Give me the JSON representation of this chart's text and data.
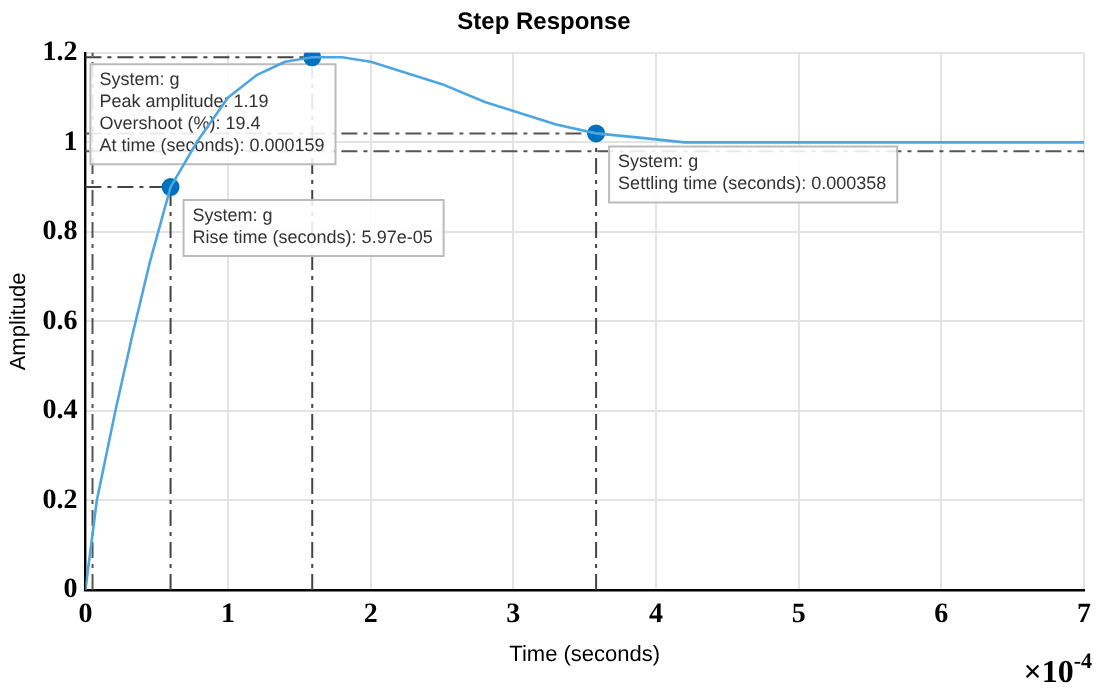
{
  "chart_data": {
    "type": "line",
    "title": "Step Response",
    "xlabel": "Time (seconds)",
    "ylabel": "Amplitude",
    "xlim": [
      0,
      7
    ],
    "xticks": [
      0,
      1,
      2,
      3,
      4,
      5,
      6,
      7
    ],
    "ylim": [
      0,
      1.2
    ],
    "yticks": [
      0,
      0.2,
      0.4,
      0.6,
      0.8,
      1,
      1.2
    ],
    "grid": true,
    "legend": false,
    "series": [
      {
        "color": "#4da6e0",
        "x": [
          0,
          0.08,
          0.21,
          0.33,
          0.45,
          0.597,
          0.78,
          1.0,
          1.2,
          1.4,
          1.59,
          1.8,
          2.0,
          2.2,
          2.5,
          2.8,
          3.0,
          3.3,
          3.58,
          3.9,
          4.2,
          5,
          6,
          7
        ],
        "values": [
          0,
          0.2,
          0.4,
          0.57,
          0.73,
          0.9,
          1.0,
          1.1,
          1.15,
          1.18,
          1.19,
          1.19,
          1.18,
          1.16,
          1.13,
          1.09,
          1.07,
          1.04,
          1.02,
          1.01,
          1.0,
          1.0,
          1.0,
          1.0
        ]
      },
      {
        "type": "scatter",
        "color": "#0072bd",
        "x": [
          0.597,
          1.59,
          3.58
        ],
        "values": [
          0.9,
          1.19,
          1.02
        ]
      }
    ],
    "ref_lines": [
      {
        "axis": "y",
        "value": 1.02,
        "color": "#555555",
        "line_style": "dashed"
      },
      {
        "axis": "y",
        "value": 0.98,
        "color": "#555555",
        "line_style": "dashed"
      },
      {
        "axis": "x",
        "value": 0.05,
        "color": "#555555",
        "line_style": "dashed"
      },
      {
        "axis": "x",
        "value": 0.597,
        "color": "#444444",
        "line_style": "dashed"
      },
      {
        "axis": "x",
        "value": 1.59,
        "color": "#444444",
        "line_style": "dashed"
      },
      {
        "axis": "x",
        "value": 3.58,
        "color": "#444444",
        "line_style": "dashed"
      },
      {
        "axis": "y",
        "value": 0.9,
        "color": "#444444",
        "line_style": "dashed"
      },
      {
        "axis": "y",
        "value": 1.19,
        "color": "#444444",
        "line_style": "dashed"
      }
    ],
    "annotations": [
      "System: g\nRise time (seconds): 5.97e-05",
      "System: g\nPeak amplitude: 1.19\nOvershoot (%): 19.4\nAt time (seconds): 0.000159",
      "System: g\nSettling time (seconds): 0.000358",
      "×10$^{-4}$"
    ]
  }
}
